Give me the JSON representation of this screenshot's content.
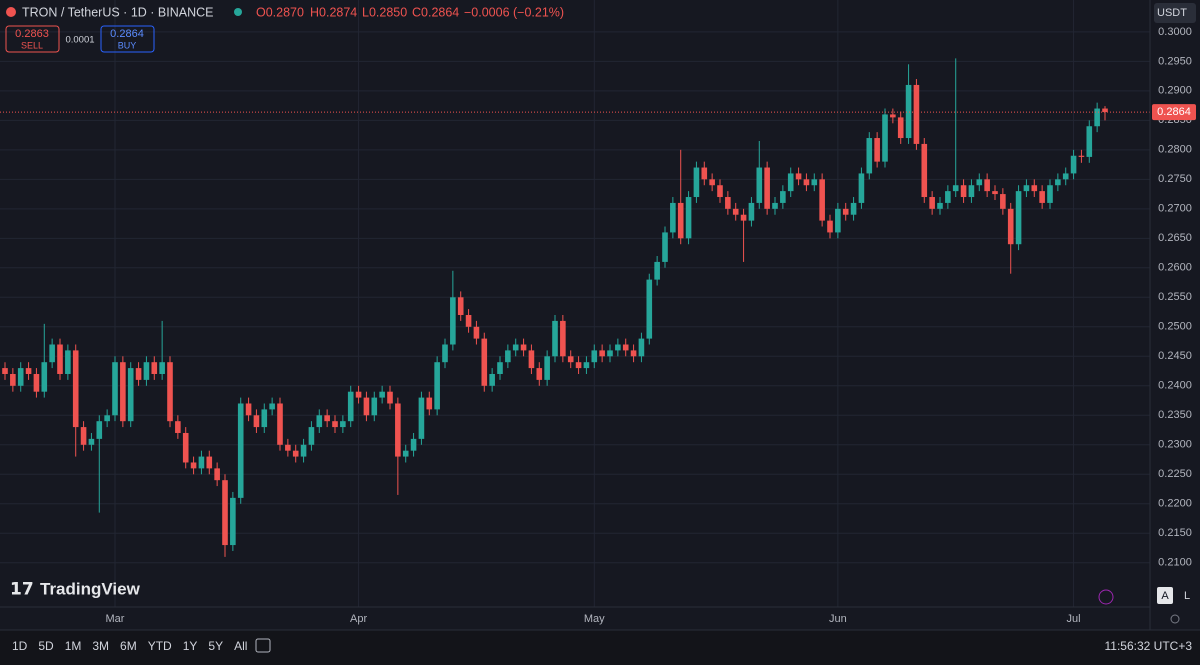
{
  "chart_data": {
    "type": "candlestick",
    "title": "TRON / TetherUS · 1D · BINANCE",
    "legend_ohlc": [
      "O0.2870",
      "H0.2874",
      "L0.2850",
      "C0.2864"
    ],
    "legend_change": "−0.0006 (−0.21%)",
    "last_price_label": "0.2864",
    "categories": [
      null,
      null,
      null,
      null,
      null,
      null,
      null,
      null,
      null,
      null,
      null,
      null,
      null,
      null,
      "Mar",
      null,
      null,
      null,
      null,
      null,
      null,
      null,
      null,
      null,
      null,
      null,
      null,
      null,
      null,
      null,
      null,
      null,
      null,
      null,
      null,
      null,
      null,
      null,
      null,
      null,
      null,
      null,
      null,
      null,
      null,
      "Apr",
      null,
      null,
      null,
      null,
      null,
      null,
      null,
      null,
      null,
      null,
      null,
      null,
      null,
      null,
      null,
      null,
      null,
      null,
      null,
      null,
      null,
      null,
      null,
      null,
      null,
      null,
      null,
      null,
      null,
      "May",
      null,
      null,
      null,
      null,
      null,
      null,
      null,
      null,
      null,
      null,
      null,
      null,
      null,
      null,
      null,
      null,
      null,
      null,
      null,
      null,
      null,
      null,
      null,
      null,
      null,
      null,
      null,
      null,
      null,
      null,
      "Jun",
      null,
      null,
      null,
      null,
      null,
      null,
      null,
      null,
      null,
      null,
      null,
      null,
      null,
      null,
      null,
      null,
      null,
      null,
      null,
      null,
      null,
      null,
      null,
      null,
      null,
      null,
      null,
      null,
      null,
      "Jul",
      null,
      null,
      null,
      null
    ],
    "open": [
      0.243,
      0.242,
      0.24,
      0.243,
      0.242,
      0.239,
      0.244,
      0.247,
      0.242,
      0.246,
      0.233,
      0.23,
      0.231,
      0.234,
      0.235,
      0.244,
      0.234,
      0.243,
      0.241,
      0.244,
      0.242,
      0.244,
      0.234,
      0.232,
      0.227,
      0.226,
      0.228,
      0.226,
      0.224,
      0.213,
      0.221,
      0.237,
      0.235,
      0.233,
      0.236,
      0.237,
      0.23,
      0.229,
      0.228,
      0.23,
      0.233,
      0.235,
      0.234,
      0.233,
      0.234,
      0.239,
      0.238,
      0.235,
      0.238,
      0.239,
      0.237,
      0.228,
      0.229,
      0.231,
      0.238,
      0.236,
      0.244,
      0.247,
      0.255,
      0.252,
      0.25,
      0.248,
      0.24,
      0.242,
      0.244,
      0.246,
      0.247,
      0.246,
      0.243,
      0.241,
      0.245,
      0.251,
      0.245,
      0.244,
      0.243,
      0.244,
      0.246,
      0.245,
      0.246,
      0.247,
      0.246,
      0.245,
      0.248,
      0.258,
      0.261,
      0.266,
      0.271,
      0.265,
      0.272,
      0.277,
      0.275,
      0.274,
      0.272,
      0.27,
      0.269,
      0.268,
      0.271,
      0.277,
      0.27,
      0.271,
      0.273,
      0.276,
      0.275,
      0.274,
      0.275,
      0.268,
      0.266,
      0.27,
      0.269,
      0.271,
      0.276,
      0.282,
      0.278,
      0.286,
      0.2855,
      0.282,
      0.291,
      0.281,
      0.272,
      0.27,
      0.271,
      0.273,
      0.274,
      0.272,
      0.274,
      0.275,
      0.273,
      0.2725,
      0.27,
      0.264,
      0.273,
      0.274,
      0.273,
      0.271,
      0.274,
      0.275,
      0.276,
      0.279,
      0.2788,
      0.284,
      0.287
    ],
    "high": [
      0.244,
      0.243,
      0.244,
      0.244,
      0.243,
      0.2505,
      0.248,
      0.248,
      0.247,
      0.247,
      0.234,
      0.232,
      0.235,
      0.236,
      0.245,
      0.245,
      0.244,
      0.244,
      0.245,
      0.245,
      0.251,
      0.245,
      0.235,
      0.233,
      0.228,
      0.229,
      0.229,
      0.227,
      0.225,
      0.222,
      0.238,
      0.238,
      0.236,
      0.237,
      0.238,
      0.238,
      0.231,
      0.23,
      0.231,
      0.234,
      0.236,
      0.236,
      0.235,
      0.235,
      0.24,
      0.24,
      0.239,
      0.239,
      0.24,
      0.24,
      0.238,
      0.23,
      0.232,
      0.239,
      0.239,
      0.245,
      0.248,
      0.2595,
      0.256,
      0.253,
      0.251,
      0.249,
      0.243,
      0.245,
      0.247,
      0.248,
      0.248,
      0.247,
      0.244,
      0.246,
      0.252,
      0.252,
      0.246,
      0.245,
      0.245,
      0.247,
      0.247,
      0.247,
      0.248,
      0.248,
      0.247,
      0.249,
      0.259,
      0.262,
      0.267,
      0.272,
      0.28,
      0.273,
      0.278,
      0.278,
      0.276,
      0.275,
      0.273,
      0.271,
      0.27,
      0.272,
      0.2815,
      0.278,
      0.272,
      0.274,
      0.277,
      0.277,
      0.276,
      0.276,
      0.276,
      0.269,
      0.271,
      0.271,
      0.272,
      0.277,
      0.283,
      0.283,
      0.287,
      0.287,
      0.2865,
      0.2945,
      0.292,
      0.282,
      0.273,
      0.272,
      0.274,
      0.2955,
      0.275,
      0.275,
      0.276,
      0.276,
      0.274,
      0.2735,
      0.271,
      0.274,
      0.275,
      0.275,
      0.274,
      0.275,
      0.276,
      0.277,
      0.28,
      0.28,
      0.285,
      0.288,
      0.2874
    ],
    "low": [
      0.241,
      0.239,
      0.239,
      0.241,
      0.238,
      0.238,
      0.243,
      0.241,
      0.241,
      0.228,
      0.229,
      0.229,
      0.2185,
      0.233,
      0.234,
      0.233,
      0.233,
      0.24,
      0.24,
      0.241,
      0.241,
      0.233,
      0.231,
      0.226,
      0.225,
      0.225,
      0.225,
      0.223,
      0.211,
      0.212,
      0.22,
      0.234,
      0.232,
      0.232,
      0.235,
      0.229,
      0.228,
      0.227,
      0.227,
      0.229,
      0.232,
      0.233,
      0.232,
      0.232,
      0.233,
      0.237,
      0.234,
      0.234,
      0.237,
      0.236,
      0.2215,
      0.227,
      0.228,
      0.23,
      0.235,
      0.235,
      0.243,
      0.246,
      0.251,
      0.249,
      0.247,
      0.239,
      0.239,
      0.241,
      0.243,
      0.245,
      0.245,
      0.242,
      0.24,
      0.24,
      0.244,
      0.244,
      0.243,
      0.242,
      0.242,
      0.243,
      0.244,
      0.244,
      0.245,
      0.245,
      0.244,
      0.244,
      0.247,
      0.257,
      0.26,
      0.265,
      0.264,
      0.264,
      0.271,
      0.274,
      0.273,
      0.271,
      0.269,
      0.268,
      0.261,
      0.267,
      0.27,
      0.269,
      0.269,
      0.27,
      0.272,
      0.274,
      0.273,
      0.273,
      0.267,
      0.265,
      0.265,
      0.268,
      0.268,
      0.27,
      0.275,
      0.277,
      0.277,
      0.2845,
      0.281,
      0.281,
      0.28,
      0.271,
      0.269,
      0.269,
      0.27,
      0.272,
      0.271,
      0.271,
      0.273,
      0.272,
      0.2715,
      0.269,
      0.259,
      0.263,
      0.272,
      0.272,
      0.27,
      0.27,
      0.273,
      0.274,
      0.275,
      0.2778,
      0.2778,
      0.283,
      0.285
    ],
    "close": [
      0.242,
      0.24,
      0.243,
      0.242,
      0.239,
      0.244,
      0.247,
      0.242,
      0.246,
      0.233,
      0.23,
      0.231,
      0.234,
      0.235,
      0.244,
      0.234,
      0.243,
      0.241,
      0.244,
      0.242,
      0.244,
      0.234,
      0.232,
      0.227,
      0.226,
      0.228,
      0.226,
      0.224,
      0.213,
      0.221,
      0.237,
      0.235,
      0.233,
      0.236,
      0.237,
      0.23,
      0.229,
      0.228,
      0.23,
      0.233,
      0.235,
      0.234,
      0.233,
      0.234,
      0.239,
      0.238,
      0.235,
      0.238,
      0.239,
      0.237,
      0.228,
      0.229,
      0.231,
      0.238,
      0.236,
      0.244,
      0.247,
      0.255,
      0.252,
      0.25,
      0.248,
      0.24,
      0.242,
      0.244,
      0.246,
      0.247,
      0.246,
      0.243,
      0.241,
      0.245,
      0.251,
      0.245,
      0.244,
      0.243,
      0.244,
      0.246,
      0.245,
      0.246,
      0.247,
      0.246,
      0.245,
      0.248,
      0.258,
      0.261,
      0.266,
      0.271,
      0.265,
      0.272,
      0.277,
      0.275,
      0.274,
      0.272,
      0.27,
      0.269,
      0.268,
      0.271,
      0.277,
      0.27,
      0.271,
      0.273,
      0.276,
      0.275,
      0.274,
      0.275,
      0.268,
      0.266,
      0.27,
      0.269,
      0.271,
      0.276,
      0.282,
      0.278,
      0.286,
      0.2855,
      0.282,
      0.291,
      0.281,
      0.272,
      0.27,
      0.271,
      0.273,
      0.274,
      0.272,
      0.274,
      0.275,
      0.273,
      0.2725,
      0.27,
      0.264,
      0.273,
      0.274,
      0.273,
      0.271,
      0.274,
      0.275,
      0.276,
      0.279,
      0.2788,
      0.284,
      0.287,
      0.2864
    ],
    "up_color": "#26a69a",
    "down_color": "#ef5350",
    "ylim": [
      0.2025,
      0.3054
    ],
    "yticks": [
      {
        "value": 0.21,
        "label": "0.2100"
      },
      {
        "value": 0.215,
        "label": "0.2150"
      },
      {
        "value": 0.22,
        "label": "0.2200"
      },
      {
        "value": 0.225,
        "label": "0.2250"
      },
      {
        "value": 0.23,
        "label": "0.2300"
      },
      {
        "value": 0.235,
        "label": "0.2350"
      },
      {
        "value": 0.24,
        "label": "0.2400"
      },
      {
        "value": 0.245,
        "label": "0.2450"
      },
      {
        "value": 0.25,
        "label": "0.2500"
      },
      {
        "value": 0.255,
        "label": "0.2550"
      },
      {
        "value": 0.26,
        "label": "0.2600"
      },
      {
        "value": 0.265,
        "label": "0.2650"
      },
      {
        "value": 0.27,
        "label": "0.2700"
      },
      {
        "value": 0.275,
        "label": "0.2750"
      },
      {
        "value": 0.28,
        "label": "0.2800"
      },
      {
        "value": 0.285,
        "label": "0.2850"
      },
      {
        "value": 0.29,
        "label": "0.2900"
      },
      {
        "value": 0.295,
        "label": "0.2950"
      },
      {
        "value": 0.3,
        "label": "0.3000"
      }
    ],
    "grid": true
  },
  "ui": {
    "sell_price": "0.2863",
    "sell_label": "SELL",
    "spread": "0.0001",
    "buy_price": "0.2864",
    "buy_label": "BUY",
    "currency": "USDT",
    "brand": "TradingView",
    "ranges": [
      "1D",
      "5D",
      "1M",
      "3M",
      "6M",
      "YTD",
      "1Y",
      "5Y",
      "All"
    ],
    "clock": "11:56:32 UTC+3",
    "scale_auto": "A",
    "scale_log": "L"
  }
}
